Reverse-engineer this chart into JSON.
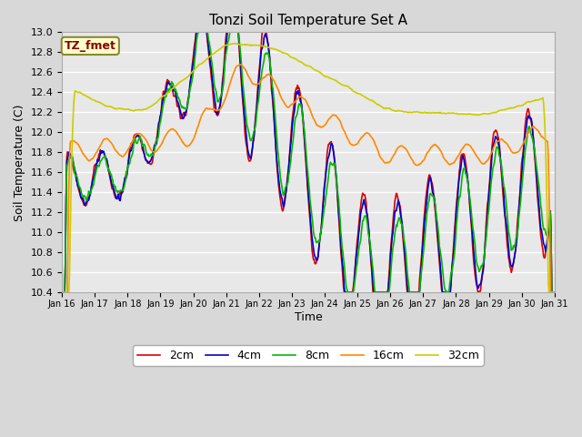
{
  "title": "Tonzi Soil Temperature Set A",
  "xlabel": "Time",
  "ylabel": "Soil Temperature (C)",
  "annotation": "TZ_fmet",
  "legend_labels": [
    "2cm",
    "4cm",
    "8cm",
    "16cm",
    "32cm"
  ],
  "line_colors": [
    "#dd0000",
    "#0000cc",
    "#00bb00",
    "#ff8800",
    "#cccc00"
  ],
  "ylim": [
    10.4,
    13.0
  ],
  "yticks": [
    10.4,
    10.6,
    10.8,
    11.0,
    11.2,
    11.4,
    11.6,
    11.8,
    12.0,
    12.2,
    12.4,
    12.6,
    12.8,
    13.0
  ],
  "xtick_labels": [
    "Jan 16",
    "Jan 17",
    "Jan 18",
    "Jan 19",
    "Jan 20",
    "Jan 21",
    "Jan 22",
    "Jan 23",
    "Jan 24",
    "Jan 25",
    "Jan 26",
    "Jan 27",
    "Jan 28",
    "Jan 29",
    "Jan 30",
    "Jan 31"
  ],
  "bg_color": "#d8d8d8",
  "plot_bg_color": "#e8e8e8",
  "grid_color": "#ffffff",
  "linewidth": 1.2
}
